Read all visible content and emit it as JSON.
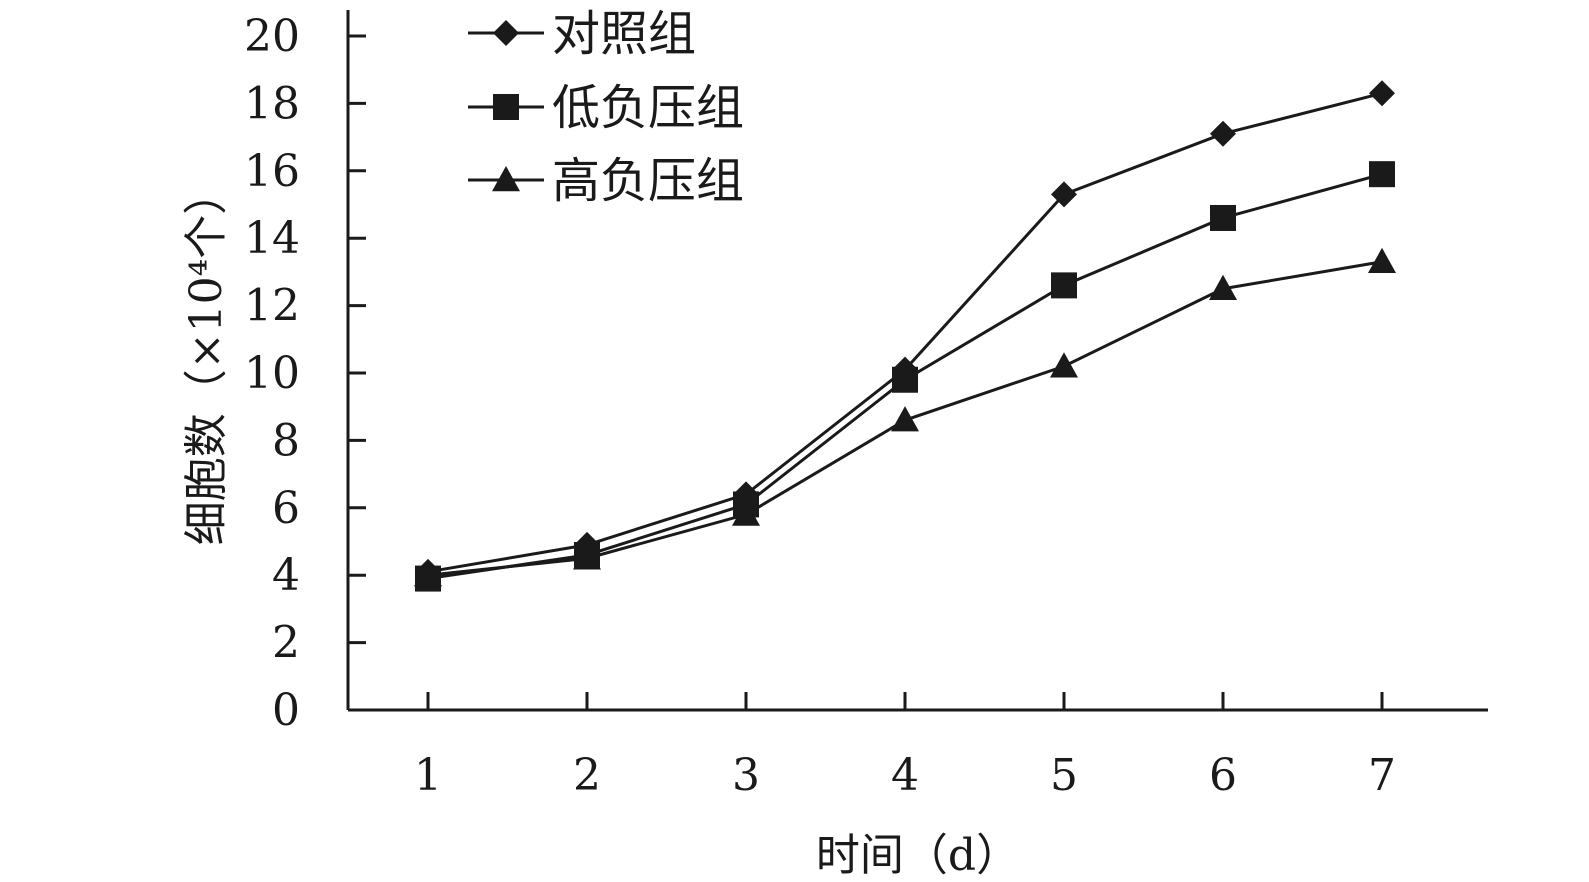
{
  "chart_data": {
    "type": "line",
    "title": "",
    "xlabel": "时间（d）",
    "ylabel": "细胞数（×10⁴个）",
    "categories": [
      "1",
      "2",
      "3",
      "4",
      "5",
      "6",
      "7"
    ],
    "x": [
      1,
      2,
      3,
      4,
      5,
      6,
      7
    ],
    "ylim": [
      0,
      20
    ],
    "yticks": [
      "0",
      "2",
      "4",
      "6",
      "8",
      "10",
      "12",
      "14",
      "16",
      "18",
      "20"
    ],
    "grid": false,
    "legend_position": "top-left",
    "series": [
      {
        "name": "对照组",
        "marker": "diamond",
        "values": [
          4.1,
          4.9,
          6.4,
          10.1,
          15.3,
          17.1,
          18.3
        ]
      },
      {
        "name": "低负压组",
        "marker": "square",
        "values": [
          3.9,
          4.6,
          6.1,
          9.8,
          12.6,
          14.6,
          15.9
        ]
      },
      {
        "name": "高负压组",
        "marker": "triangle",
        "values": [
          4.0,
          4.5,
          5.8,
          8.6,
          10.2,
          12.5,
          13.3
        ]
      }
    ],
    "colors": {
      "line": "#1a1a1a",
      "marker": "#1a1a1a",
      "axis": "#1a1a1a"
    }
  }
}
